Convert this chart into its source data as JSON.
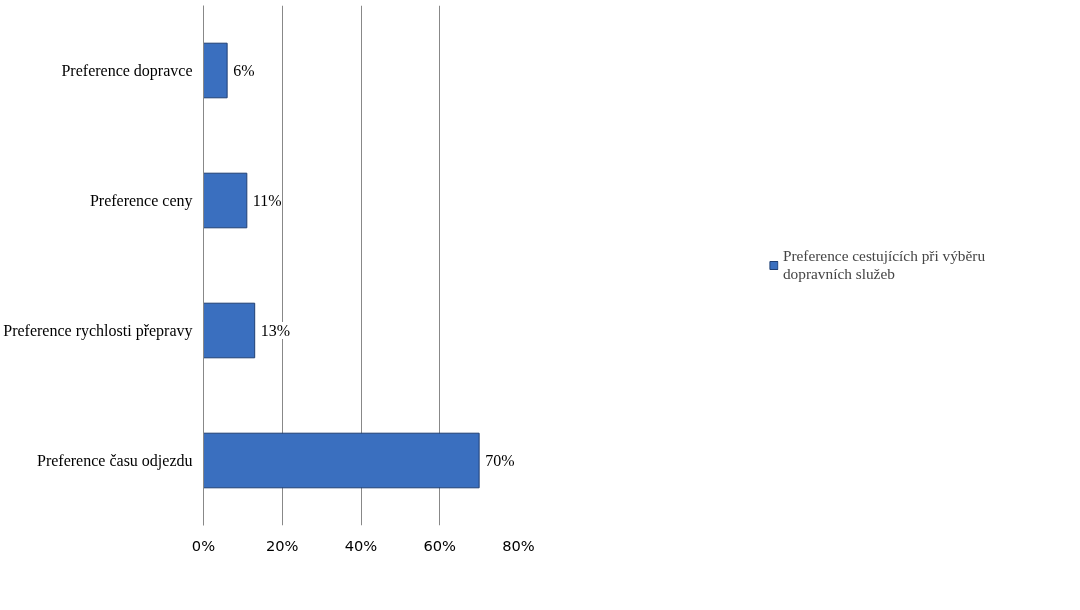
{
  "chart_data": {
    "type": "bar",
    "orientation": "horizontal",
    "categories": [
      "Preference dopravce",
      "Preference ceny",
      "Preference rychlosti přepravy",
      "Preference času odjezdu"
    ],
    "series": [
      {
        "name": "Preference cestujících při výběru dopravních služeb",
        "color": "#3a6fbf",
        "values": [
          6,
          11,
          13,
          70
        ],
        "value_labels": [
          "6%",
          "11%",
          "13%",
          "70%"
        ]
      }
    ],
    "xlim": [
      0,
      80
    ],
    "xticks": [
      {
        "value": 0,
        "label": "0%"
      },
      {
        "value": 20,
        "label": "20%"
      },
      {
        "value": 40,
        "label": "40%"
      },
      {
        "value": 60,
        "label": "60%"
      },
      {
        "value": 80,
        "label": "80%"
      }
    ],
    "grid": "x",
    "legend": "right"
  }
}
